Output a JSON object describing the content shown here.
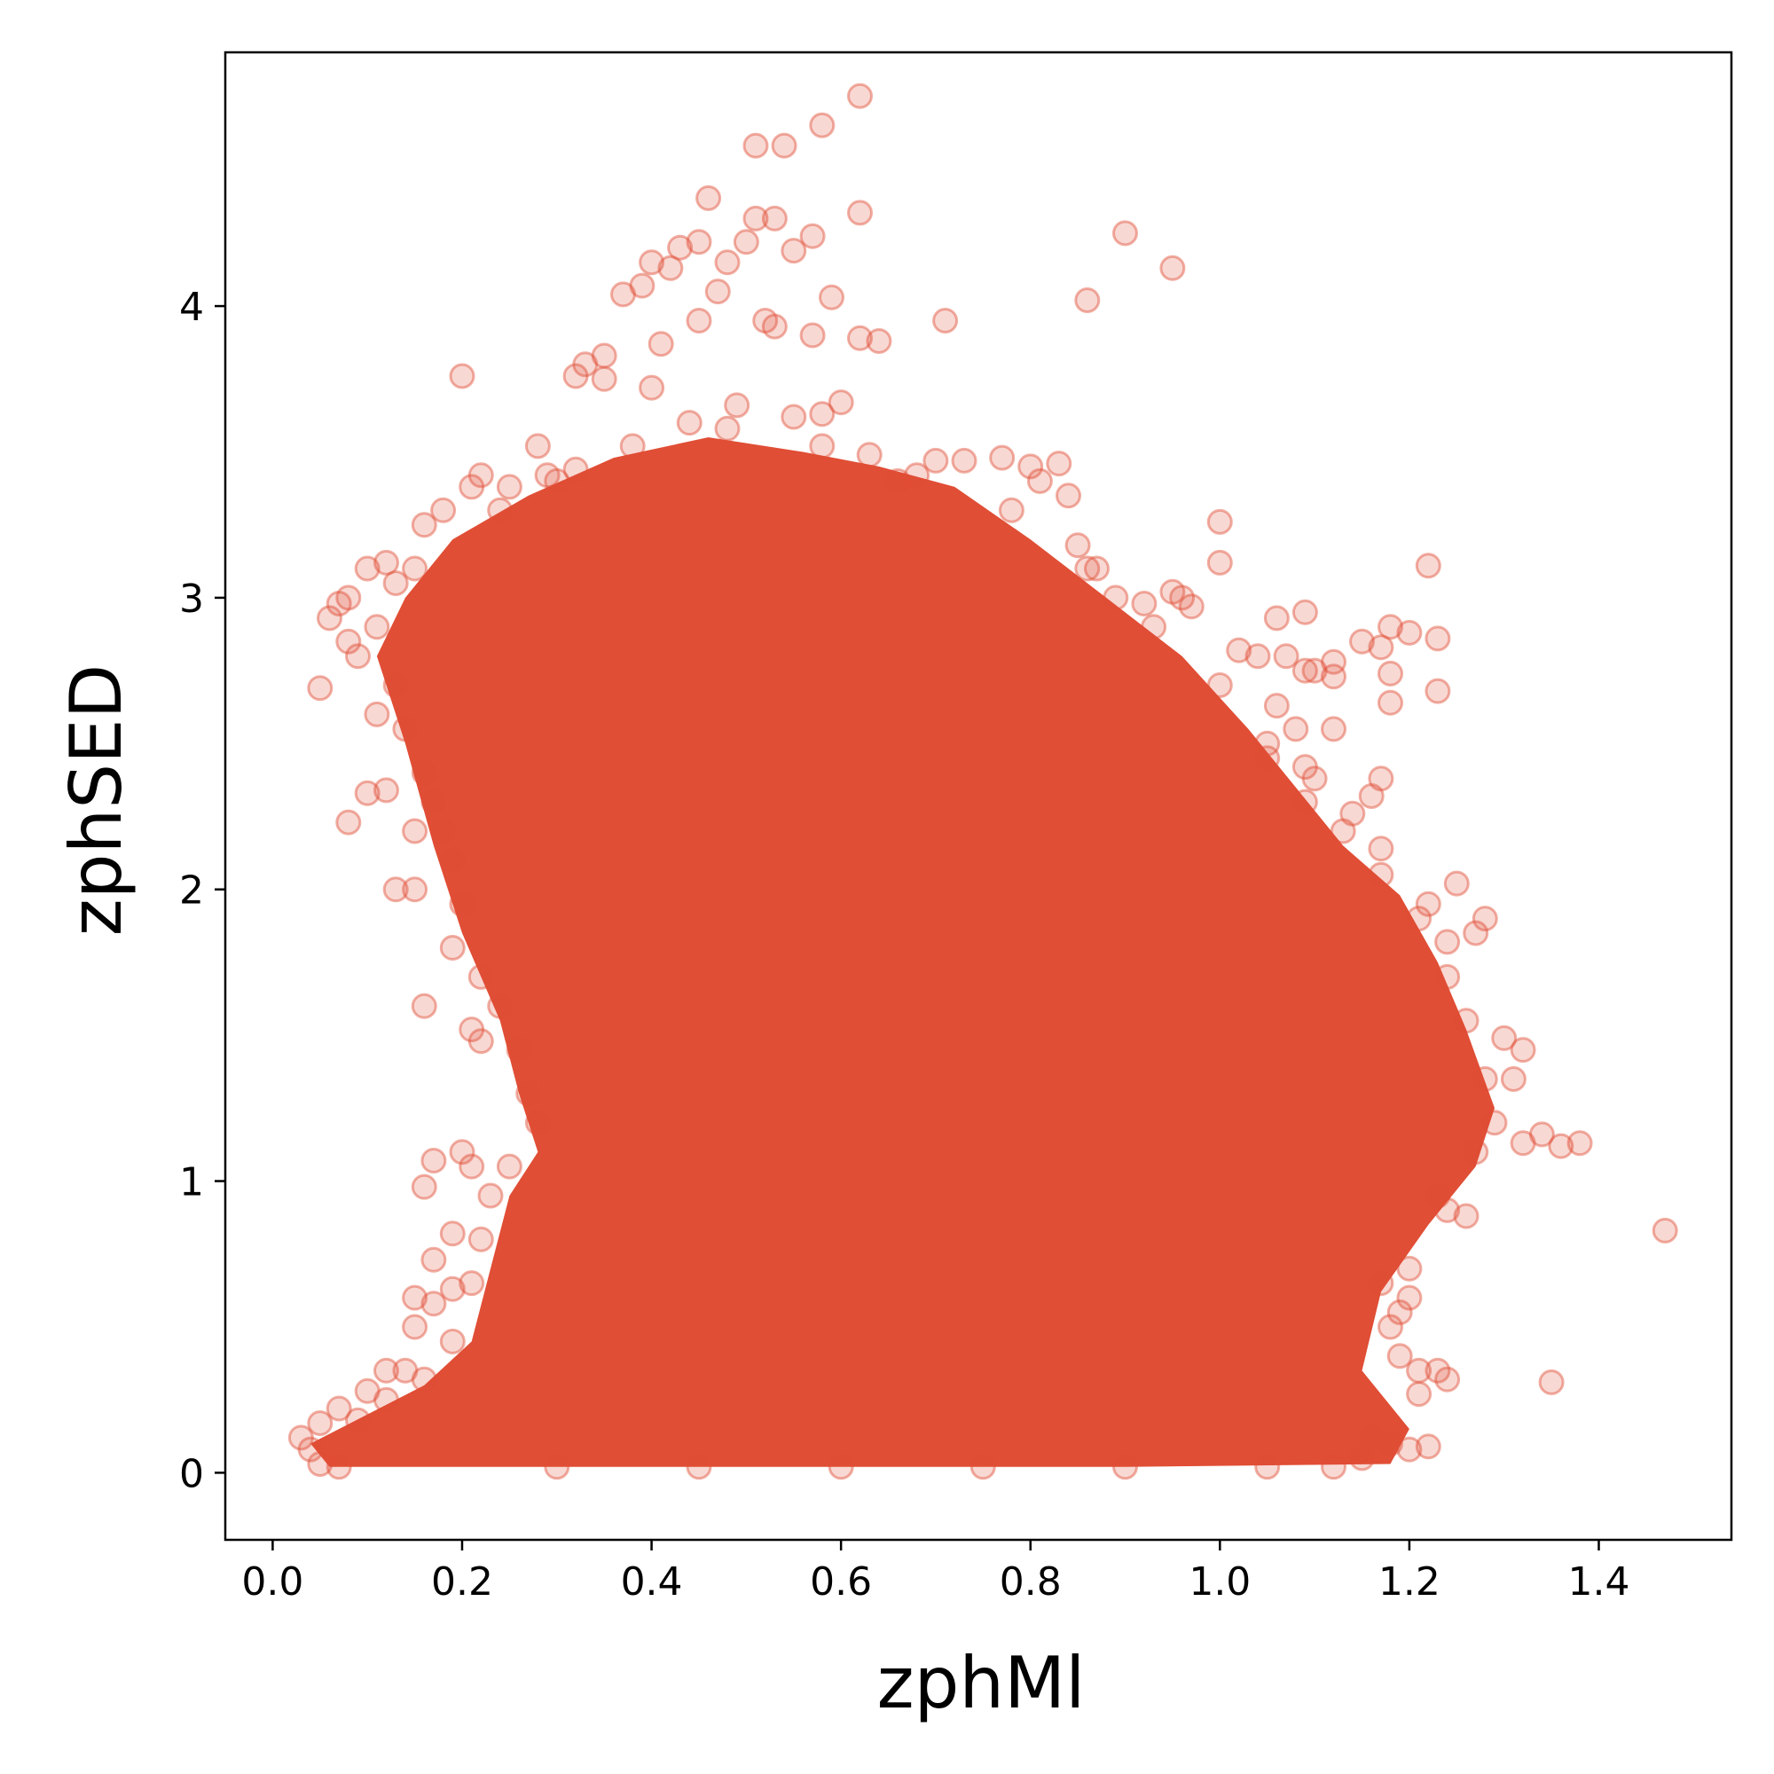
{
  "chart_data": {
    "type": "scatter",
    "title": "",
    "xlabel": "zphMl",
    "ylabel": "zphSED",
    "xlim": [
      -0.05,
      1.54
    ],
    "ylim": [
      -0.23,
      4.87
    ],
    "xticks": [
      0.0,
      0.2,
      0.4,
      0.6,
      0.8,
      1.0,
      1.2,
      1.4
    ],
    "xtick_labels": [
      "0.0",
      "0.2",
      "0.4",
      "0.6",
      "0.8",
      "1.0",
      "1.2",
      "1.4"
    ],
    "yticks": [
      0,
      1,
      2,
      3,
      4
    ],
    "ytick_labels": [
      "0",
      "1",
      "2",
      "3",
      "4"
    ],
    "grid": false,
    "marker": "open-circle",
    "alpha": 0.25,
    "colors": {
      "points": "#e04e35",
      "axes": "#000000",
      "background": "#ffffff"
    },
    "dense_region_outline": [
      [
        0.06,
        0.02
      ],
      [
        0.04,
        0.1
      ],
      [
        0.1,
        0.2
      ],
      [
        0.16,
        0.3
      ],
      [
        0.21,
        0.45
      ],
      [
        0.23,
        0.7
      ],
      [
        0.25,
        0.95
      ],
      [
        0.28,
        1.1
      ],
      [
        0.26,
        1.3
      ],
      [
        0.24,
        1.55
      ],
      [
        0.2,
        1.85
      ],
      [
        0.17,
        2.15
      ],
      [
        0.14,
        2.5
      ],
      [
        0.11,
        2.8
      ],
      [
        0.14,
        3.0
      ],
      [
        0.19,
        3.2
      ],
      [
        0.27,
        3.35
      ],
      [
        0.36,
        3.48
      ],
      [
        0.46,
        3.55
      ],
      [
        0.56,
        3.5
      ],
      [
        0.64,
        3.45
      ],
      [
        0.72,
        3.38
      ],
      [
        0.8,
        3.2
      ],
      [
        0.88,
        3.0
      ],
      [
        0.96,
        2.8
      ],
      [
        1.03,
        2.55
      ],
      [
        1.08,
        2.35
      ],
      [
        1.13,
        2.15
      ],
      [
        1.19,
        1.98
      ],
      [
        1.23,
        1.75
      ],
      [
        1.26,
        1.52
      ],
      [
        1.29,
        1.25
      ],
      [
        1.27,
        1.05
      ],
      [
        1.22,
        0.85
      ],
      [
        1.17,
        0.62
      ],
      [
        1.15,
        0.35
      ],
      [
        1.2,
        0.15
      ],
      [
        1.18,
        0.03
      ],
      [
        0.9,
        0.02
      ],
      [
        0.5,
        0.02
      ]
    ],
    "points": [
      [
        0.62,
        4.72
      ],
      [
        0.58,
        4.62
      ],
      [
        0.51,
        4.55
      ],
      [
        0.54,
        4.55
      ],
      [
        0.46,
        4.37
      ],
      [
        0.51,
        4.3
      ],
      [
        0.53,
        4.3
      ],
      [
        0.62,
        4.32
      ],
      [
        0.43,
        4.2
      ],
      [
        0.45,
        4.22
      ],
      [
        0.5,
        4.22
      ],
      [
        0.55,
        4.19
      ],
      [
        0.57,
        4.24
      ],
      [
        0.4,
        4.15
      ],
      [
        0.42,
        4.13
      ],
      [
        0.48,
        4.15
      ],
      [
        0.39,
        4.07
      ],
      [
        0.47,
        4.05
      ],
      [
        0.59,
        4.03
      ],
      [
        0.37,
        4.04
      ],
      [
        0.45,
        3.95
      ],
      [
        0.52,
        3.95
      ],
      [
        0.53,
        3.93
      ],
      [
        0.57,
        3.9
      ],
      [
        0.64,
        3.88
      ],
      [
        0.62,
        3.89
      ],
      [
        0.71,
        3.95
      ],
      [
        0.86,
        4.02
      ],
      [
        0.9,
        4.25
      ],
      [
        0.95,
        4.13
      ],
      [
        0.41,
        3.87
      ],
      [
        0.35,
        3.83
      ],
      [
        0.33,
        3.8
      ],
      [
        0.32,
        3.76
      ],
      [
        0.35,
        3.75
      ],
      [
        0.4,
        3.72
      ],
      [
        0.6,
        3.67
      ],
      [
        0.58,
        3.63
      ],
      [
        0.2,
        3.76
      ],
      [
        0.28,
        3.52
      ],
      [
        0.25,
        3.38
      ],
      [
        0.21,
        3.38
      ],
      [
        0.16,
        3.25
      ],
      [
        0.12,
        3.12
      ],
      [
        0.1,
        3.1
      ],
      [
        0.08,
        3.0
      ],
      [
        0.06,
        2.93
      ],
      [
        0.07,
        2.98
      ],
      [
        0.08,
        2.85
      ],
      [
        0.05,
        2.69
      ],
      [
        0.09,
        2.8
      ],
      [
        0.11,
        2.6
      ],
      [
        0.12,
        2.34
      ],
      [
        0.1,
        2.33
      ],
      [
        0.08,
        2.23
      ],
      [
        0.15,
        2.2
      ],
      [
        0.18,
        2.2
      ],
      [
        0.13,
        2.0
      ],
      [
        0.15,
        2.0
      ],
      [
        0.19,
        1.8
      ],
      [
        0.16,
        1.6
      ],
      [
        0.21,
        1.52
      ],
      [
        0.22,
        1.48
      ],
      [
        0.27,
        1.3
      ],
      [
        0.2,
        1.1
      ],
      [
        0.17,
        1.07
      ],
      [
        0.21,
        1.05
      ],
      [
        0.16,
        0.98
      ],
      [
        0.19,
        0.82
      ],
      [
        0.17,
        0.73
      ],
      [
        0.19,
        0.63
      ],
      [
        0.15,
        0.6
      ],
      [
        0.17,
        0.58
      ],
      [
        0.15,
        0.5
      ],
      [
        0.14,
        0.35
      ],
      [
        0.12,
        0.35
      ],
      [
        0.1,
        0.28
      ],
      [
        0.07,
        0.22
      ],
      [
        0.05,
        0.17
      ],
      [
        0.03,
        0.12
      ],
      [
        0.04,
        0.08
      ],
      [
        0.05,
        0.03
      ],
      [
        0.07,
        0.02
      ],
      [
        0.8,
        3.45
      ],
      [
        0.77,
        3.48
      ],
      [
        0.83,
        3.46
      ],
      [
        0.84,
        3.35
      ],
      [
        0.81,
        3.4
      ],
      [
        0.85,
        3.18
      ],
      [
        0.86,
        3.1
      ],
      [
        0.89,
        3.0
      ],
      [
        0.92,
        2.98
      ],
      [
        0.96,
        3.0
      ],
      [
        0.97,
        2.97
      ],
      [
        0.95,
        3.02
      ],
      [
        1.0,
        3.12
      ],
      [
        1.0,
        3.26
      ],
      [
        1.06,
        2.93
      ],
      [
        1.09,
        2.95
      ],
      [
        1.02,
        2.82
      ],
      [
        1.04,
        2.8
      ],
      [
        1.07,
        2.8
      ],
      [
        1.09,
        2.75
      ],
      [
        1.1,
        2.75
      ],
      [
        1.12,
        2.73
      ],
      [
        1.12,
        2.78
      ],
      [
        1.15,
        2.85
      ],
      [
        1.17,
        2.83
      ],
      [
        1.18,
        2.9
      ],
      [
        1.2,
        2.88
      ],
      [
        1.23,
        2.86
      ],
      [
        1.22,
        3.11
      ],
      [
        1.18,
        2.74
      ],
      [
        1.23,
        2.68
      ],
      [
        1.18,
        2.64
      ],
      [
        1.17,
        2.38
      ],
      [
        1.16,
        2.32
      ],
      [
        1.14,
        2.26
      ],
      [
        1.17,
        2.14
      ],
      [
        1.08,
        2.55
      ],
      [
        1.12,
        2.55
      ],
      [
        1.06,
        2.63
      ],
      [
        1.05,
        2.45
      ],
      [
        1.1,
        2.38
      ],
      [
        1.09,
        2.42
      ],
      [
        1.25,
        2.02
      ],
      [
        1.28,
        1.9
      ],
      [
        1.27,
        1.85
      ],
      [
        1.24,
        1.82
      ],
      [
        1.22,
        1.95
      ],
      [
        1.3,
        1.49
      ],
      [
        1.32,
        1.45
      ],
      [
        1.31,
        1.35
      ],
      [
        1.32,
        1.13
      ],
      [
        1.34,
        1.16
      ],
      [
        1.36,
        1.12
      ],
      [
        1.38,
        1.13
      ],
      [
        1.47,
        0.83
      ],
      [
        1.26,
        0.88
      ],
      [
        1.23,
        0.95
      ],
      [
        1.2,
        0.6
      ],
      [
        1.19,
        0.55
      ],
      [
        1.17,
        0.65
      ],
      [
        1.21,
        0.35
      ],
      [
        1.23,
        0.35
      ],
      [
        1.24,
        0.32
      ],
      [
        1.21,
        0.27
      ],
      [
        1.2,
        0.08
      ],
      [
        1.22,
        0.09
      ],
      [
        1.18,
        0.1
      ],
      [
        1.16,
        0.12
      ],
      [
        1.35,
        0.31
      ],
      [
        0.7,
        3.47
      ],
      [
        0.73,
        3.47
      ],
      [
        0.66,
        3.4
      ],
      [
        0.63,
        3.49
      ],
      [
        0.55,
        3.62
      ],
      [
        0.49,
        3.66
      ],
      [
        0.44,
        3.6
      ],
      [
        0.32,
        3.44
      ],
      [
        0.29,
        3.42
      ],
      [
        0.22,
        3.42
      ],
      [
        0.18,
        3.3
      ],
      [
        0.15,
        3.1
      ],
      [
        0.13,
        3.05
      ],
      [
        0.11,
        2.9
      ],
      [
        0.13,
        2.7
      ],
      [
        0.14,
        2.55
      ],
      [
        0.16,
        2.4
      ],
      [
        0.17,
        2.3
      ],
      [
        0.19,
        2.1
      ],
      [
        0.2,
        1.95
      ],
      [
        0.22,
        1.7
      ],
      [
        0.24,
        1.6
      ],
      [
        0.26,
        1.45
      ],
      [
        0.28,
        1.2
      ],
      [
        0.25,
        1.05
      ],
      [
        0.23,
        0.95
      ],
      [
        0.22,
        0.8
      ],
      [
        0.21,
        0.65
      ],
      [
        0.19,
        0.45
      ],
      [
        0.16,
        0.32
      ],
      [
        0.12,
        0.25
      ],
      [
        0.09,
        0.18
      ],
      [
        0.3,
        0.02
      ],
      [
        0.45,
        0.02
      ],
      [
        0.6,
        0.02
      ],
      [
        0.75,
        0.02
      ],
      [
        0.9,
        0.02
      ],
      [
        1.05,
        0.02
      ],
      [
        1.12,
        0.02
      ],
      [
        1.15,
        0.05
      ],
      [
        1.19,
        0.4
      ],
      [
        1.18,
        0.5
      ],
      [
        1.2,
        0.7
      ],
      [
        1.24,
        0.9
      ],
      [
        1.27,
        1.1
      ],
      [
        1.29,
        1.2
      ],
      [
        1.28,
        1.35
      ],
      [
        1.26,
        1.55
      ],
      [
        1.24,
        1.7
      ],
      [
        1.21,
        1.9
      ],
      [
        1.17,
        2.05
      ],
      [
        1.13,
        2.2
      ],
      [
        1.09,
        2.3
      ],
      [
        1.05,
        2.5
      ],
      [
        1.0,
        2.7
      ],
      [
        0.93,
        2.9
      ],
      [
        0.87,
        3.1
      ],
      [
        0.78,
        3.3
      ],
      [
        0.68,
        3.42
      ],
      [
        0.58,
        3.52
      ],
      [
        0.48,
        3.58
      ],
      [
        0.38,
        3.52
      ],
      [
        0.3,
        3.4
      ],
      [
        0.24,
        3.3
      ]
    ]
  }
}
